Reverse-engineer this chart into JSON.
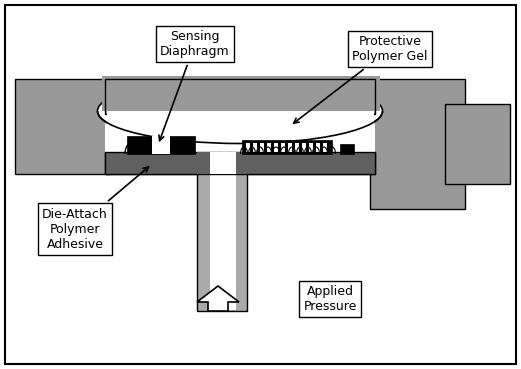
{
  "bg_color": "#ffffff",
  "black": "#000000",
  "white": "#ffffff",
  "gray_body": "#999999",
  "gray_dark": "#606060",
  "gray_light": "#c8c8c8",
  "gray_stem": "#aaaaaa",
  "labels": {
    "sensing": "Sensing\nDiaphragm",
    "polymer_gel": "Protective\nPolymer Gel",
    "die_attach": "Die-Attach\nPolymer\nAdhesive",
    "applied_pressure": "Applied\nPressure"
  },
  "figsize": [
    5.21,
    3.69
  ],
  "dpi": 100
}
